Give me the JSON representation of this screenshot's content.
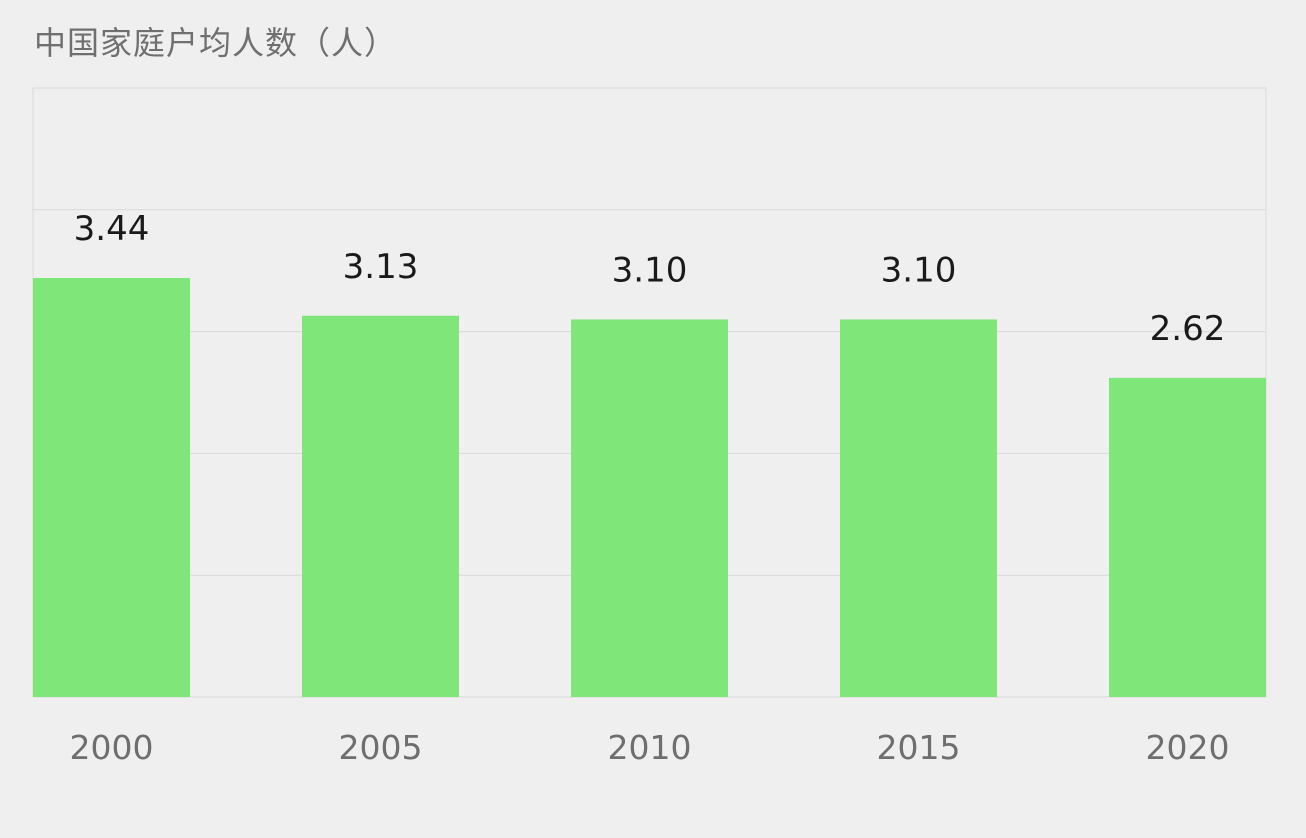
{
  "chart_data": {
    "type": "bar",
    "title": "中国家庭户均人数（人）",
    "xlabel": "",
    "ylabel": "",
    "categories": [
      "2000",
      "2005",
      "2010",
      "2015",
      "2020"
    ],
    "values": [
      3.44,
      3.13,
      3.1,
      3.1,
      2.62
    ],
    "value_labels": [
      "3.44",
      "3.13",
      "3.10",
      "3.10",
      "2.62"
    ],
    "ylim": [
      0,
      5
    ],
    "grid": true,
    "legend": "none",
    "colors": {
      "bar": "#7fe67a",
      "grid": "#d9d9d9",
      "background": "#efefef"
    }
  }
}
